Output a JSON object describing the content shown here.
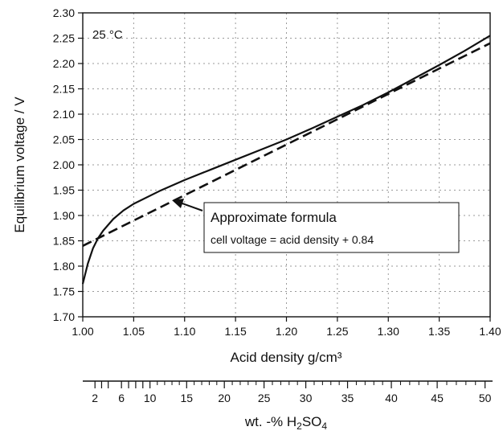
{
  "chart_data": {
    "type": "line",
    "annotation_temp": "25 °C",
    "xlabel": "Acid density g/cm³",
    "ylabel": "Equilibrium voltage / V",
    "xlim": [
      1.0,
      1.4
    ],
    "ylim": [
      1.7,
      2.3
    ],
    "grid": true,
    "x_ticks": [
      "1.00",
      "1.05",
      "1.10",
      "1.15",
      "1.20",
      "1.25",
      "1.30",
      "1.35",
      "1.40"
    ],
    "y_ticks": [
      "1.70",
      "1.75",
      "1.80",
      "1.85",
      "1.90",
      "1.95",
      "2.00",
      "2.05",
      "2.10",
      "2.15",
      "2.20",
      "2.25",
      "2.30"
    ],
    "series": [
      {
        "style": "solid",
        "x": [
          1.0,
          1.005,
          1.01,
          1.015,
          1.02,
          1.03,
          1.04,
          1.05,
          1.075,
          1.1,
          1.125,
          1.15,
          1.175,
          1.2,
          1.225,
          1.25,
          1.275,
          1.3,
          1.325,
          1.35,
          1.375,
          1.4
        ],
        "y": [
          1.765,
          1.805,
          1.835,
          1.855,
          1.87,
          1.893,
          1.91,
          1.923,
          1.948,
          1.97,
          1.99,
          2.01,
          2.03,
          2.05,
          2.072,
          2.095,
          2.118,
          2.143,
          2.17,
          2.197,
          2.225,
          2.255
        ]
      },
      {
        "style": "dashed",
        "x": [
          1.0,
          1.4
        ],
        "y": [
          1.84,
          2.24
        ]
      }
    ],
    "formula_box": {
      "title": "Approximate formula",
      "formula": "cell voltage = acid density + 0.84"
    },
    "secondary_axis": {
      "label_prefix": "wt. -% H",
      "label_sub1": "2",
      "label_mid": "SO",
      "label_sub2": "4",
      "mapping": [
        [
          0,
          1.0
        ],
        [
          2,
          1.012
        ],
        [
          4,
          1.025
        ],
        [
          6,
          1.038
        ],
        [
          8,
          1.052
        ],
        [
          10,
          1.066
        ],
        [
          15,
          1.102
        ],
        [
          20,
          1.139
        ],
        [
          25,
          1.178
        ],
        [
          30,
          1.219
        ],
        [
          35,
          1.26
        ],
        [
          40,
          1.303
        ],
        [
          45,
          1.348
        ],
        [
          50,
          1.395
        ],
        [
          51,
          1.404
        ]
      ],
      "labeled_ticks": [
        "2",
        "6",
        "10",
        "15",
        "20",
        "25",
        "30",
        "35",
        "40",
        "45",
        "50"
      ],
      "minor_ticks": [
        3,
        4,
        7,
        8,
        9
      ]
    }
  }
}
